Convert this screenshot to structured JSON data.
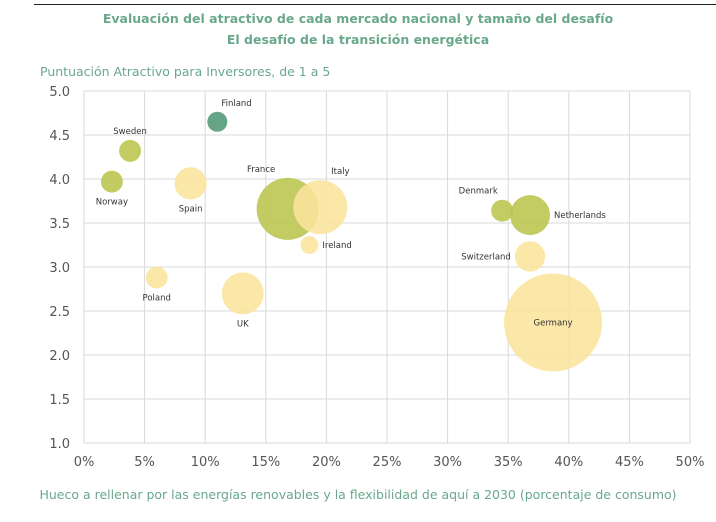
{
  "chart_data": {
    "type": "scatter",
    "subtype": "bubble",
    "title": "Evaluación del atractivo de cada mercado nacional y tamaño del desafío",
    "subtitle": "El desafío de la transición energética",
    "ylabel": "Puntuación Atractivo para Inversores, de 1 a 5",
    "xlabel": "Hueco a rellenar por las energías renovables y la flexibilidad de aquí a 2030 (porcentaje de consumo)",
    "xlim": [
      0,
      0.5
    ],
    "ylim": [
      1.0,
      5.0
    ],
    "xticks": [
      "0%",
      "5%",
      "10%",
      "15%",
      "20%",
      "25%",
      "30%",
      "35%",
      "40%",
      "45%",
      "50%"
    ],
    "yticks": [
      "1.0",
      "1.5",
      "2.0",
      "2.5",
      "3.0",
      "3.5",
      "4.0",
      "4.5",
      "5.0"
    ],
    "grid": true,
    "legend": "none",
    "colors": {
      "dark_green": "#5e9f80",
      "olive": "#b9c54c",
      "yellow": "#fbe49c"
    },
    "points": [
      {
        "name": "Finland",
        "x": 0.11,
        "y": 4.65,
        "size": 1.0,
        "color": "dark_green",
        "label_pos": "top-right"
      },
      {
        "name": "Sweden",
        "x": 0.038,
        "y": 4.32,
        "size": 1.2,
        "color": "olive",
        "label_pos": "top"
      },
      {
        "name": "Norway",
        "x": 0.023,
        "y": 3.97,
        "size": 1.2,
        "color": "olive",
        "label_pos": "bottom"
      },
      {
        "name": "Spain",
        "x": 0.088,
        "y": 3.95,
        "size": 2.6,
        "color": "yellow",
        "label_pos": "bottom"
      },
      {
        "name": "France",
        "x": 0.168,
        "y": 3.66,
        "size": 9.6,
        "color": "olive",
        "label_pos": "top-left"
      },
      {
        "name": "Italy",
        "x": 0.195,
        "y": 3.68,
        "size": 7.3,
        "color": "yellow",
        "label_pos": "top-right"
      },
      {
        "name": "Ireland",
        "x": 0.186,
        "y": 3.25,
        "size": 0.8,
        "color": "yellow",
        "label_pos": "right"
      },
      {
        "name": "Poland",
        "x": 0.06,
        "y": 2.88,
        "size": 1.2,
        "color": "yellow",
        "label_pos": "bottom"
      },
      {
        "name": "UK",
        "x": 0.131,
        "y": 2.7,
        "size": 4.4,
        "color": "yellow",
        "label_pos": "bottom"
      },
      {
        "name": "Denmark",
        "x": 0.345,
        "y": 3.64,
        "size": 1.2,
        "color": "olive",
        "label_pos": "top-left"
      },
      {
        "name": "Netherlands",
        "x": 0.368,
        "y": 3.59,
        "size": 4.0,
        "color": "olive",
        "label_pos": "right"
      },
      {
        "name": "Switzerland",
        "x": 0.368,
        "y": 3.12,
        "size": 2.3,
        "color": "yellow",
        "label_pos": "left"
      },
      {
        "name": "Germany",
        "x": 0.387,
        "y": 2.37,
        "size": 24.0,
        "color": "yellow",
        "label_pos": "center"
      }
    ]
  }
}
